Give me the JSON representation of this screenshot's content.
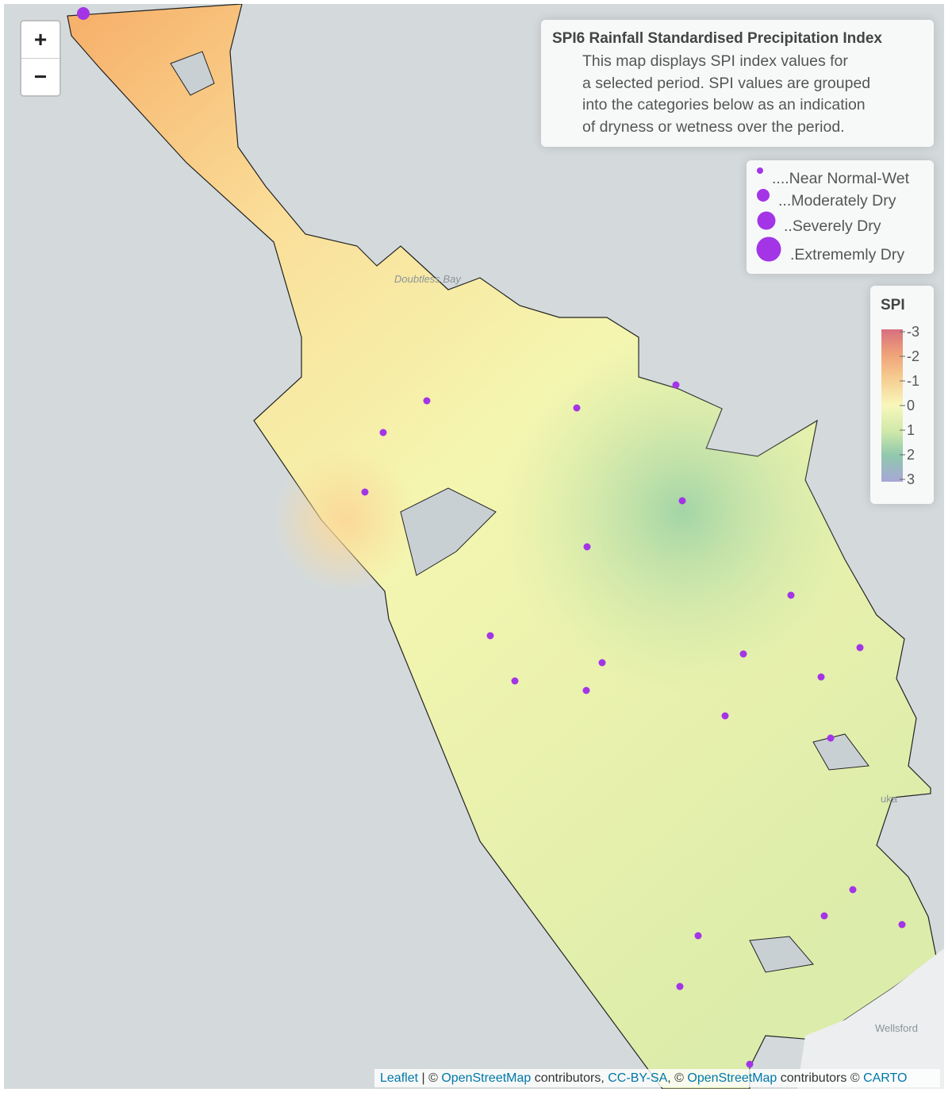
{
  "zoom": {
    "in": "+",
    "out": "−"
  },
  "info": {
    "title": "SPI6 Rainfall Standardised Precipitation Index",
    "lines": [
      "This map displays SPI index values for",
      "a selected period. SPI values are grouped",
      "into the categories below as an indication",
      "of dryness or wetness over the period."
    ]
  },
  "size_legend": [
    "....Near Normal-Wet",
    "...Moderately Dry",
    "..Severely Dry",
    ".Extrememly Dry"
  ],
  "color_legend": {
    "title": "SPI",
    "ticks": [
      -3,
      -2,
      -1,
      0,
      1,
      2,
      3
    ]
  },
  "map_labels": [
    "Doubtless Bay",
    "Wellsford",
    "uka"
  ],
  "attribution": {
    "leaflet": "Leaflet",
    "sep1": "| ©",
    "osm1": "OpenStreetMap",
    "contrib1": "contributors,",
    "ccbysa": "CC-BY-SA",
    "sep2": ", ©",
    "osm2": "OpenStreetMap",
    "contrib2": "contributors ©",
    "carto": "CARTO"
  }
}
